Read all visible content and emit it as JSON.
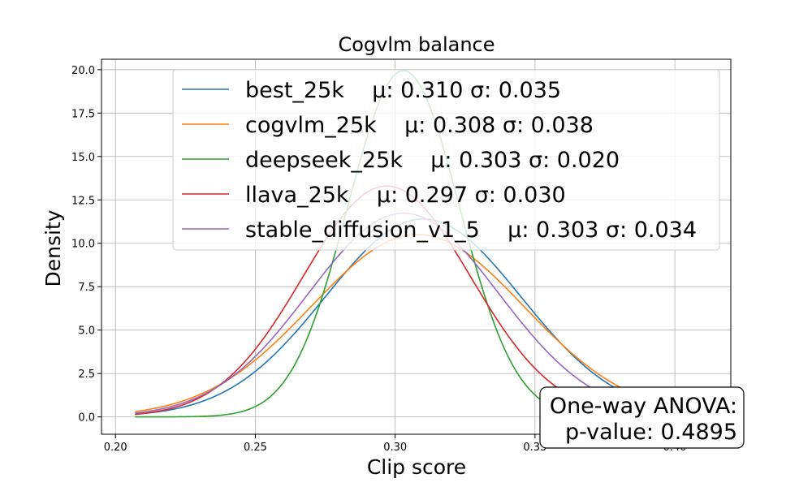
{
  "chart_data": {
    "type": "line",
    "title": "Cogvlm balance",
    "xlabel": "Clip score",
    "ylabel": "Density",
    "xlim": [
      0.195,
      0.42
    ],
    "ylim": [
      -1.0,
      20.6
    ],
    "x_range": [
      0.207,
      0.405
    ],
    "xticks": [
      0.2,
      0.25,
      0.3,
      0.35,
      0.4
    ],
    "xtick_labels": [
      "0.20",
      "0.25",
      "0.30",
      "0.35",
      "0.40"
    ],
    "yticks": [
      0.0,
      2.5,
      5.0,
      7.5,
      10.0,
      12.5,
      15.0,
      17.5,
      20.0
    ],
    "ytick_labels": [
      "0.0",
      "2.5",
      "5.0",
      "7.5",
      "10.0",
      "12.5",
      "15.0",
      "17.5",
      "20.0"
    ],
    "grid": true,
    "legend_position": "top-right",
    "series": [
      {
        "name": "best_25k",
        "stats": "μ: 0.310 σ: 0.035",
        "mu": 0.31,
        "sigma": 0.035,
        "color": "#1f77b4"
      },
      {
        "name": "cogvlm_25k",
        "stats": "μ: 0.308 σ: 0.038",
        "mu": 0.308,
        "sigma": 0.038,
        "color": "#ff7f0e"
      },
      {
        "name": "deepseek_25k",
        "stats": "μ: 0.303 σ: 0.020",
        "mu": 0.303,
        "sigma": 0.02,
        "color": "#2ca02c"
      },
      {
        "name": "llava_25k",
        "stats": "μ: 0.297 σ: 0.030",
        "mu": 0.297,
        "sigma": 0.03,
        "color": "#d62728"
      },
      {
        "name": "stable_diffusion_v1_5",
        "stats": "μ: 0.303 σ: 0.034",
        "mu": 0.303,
        "sigma": 0.034,
        "color": "#9467bd"
      }
    ],
    "annotation": {
      "line1": "One-way ANOVA:",
      "line2": "p-value: 0.4895"
    }
  }
}
